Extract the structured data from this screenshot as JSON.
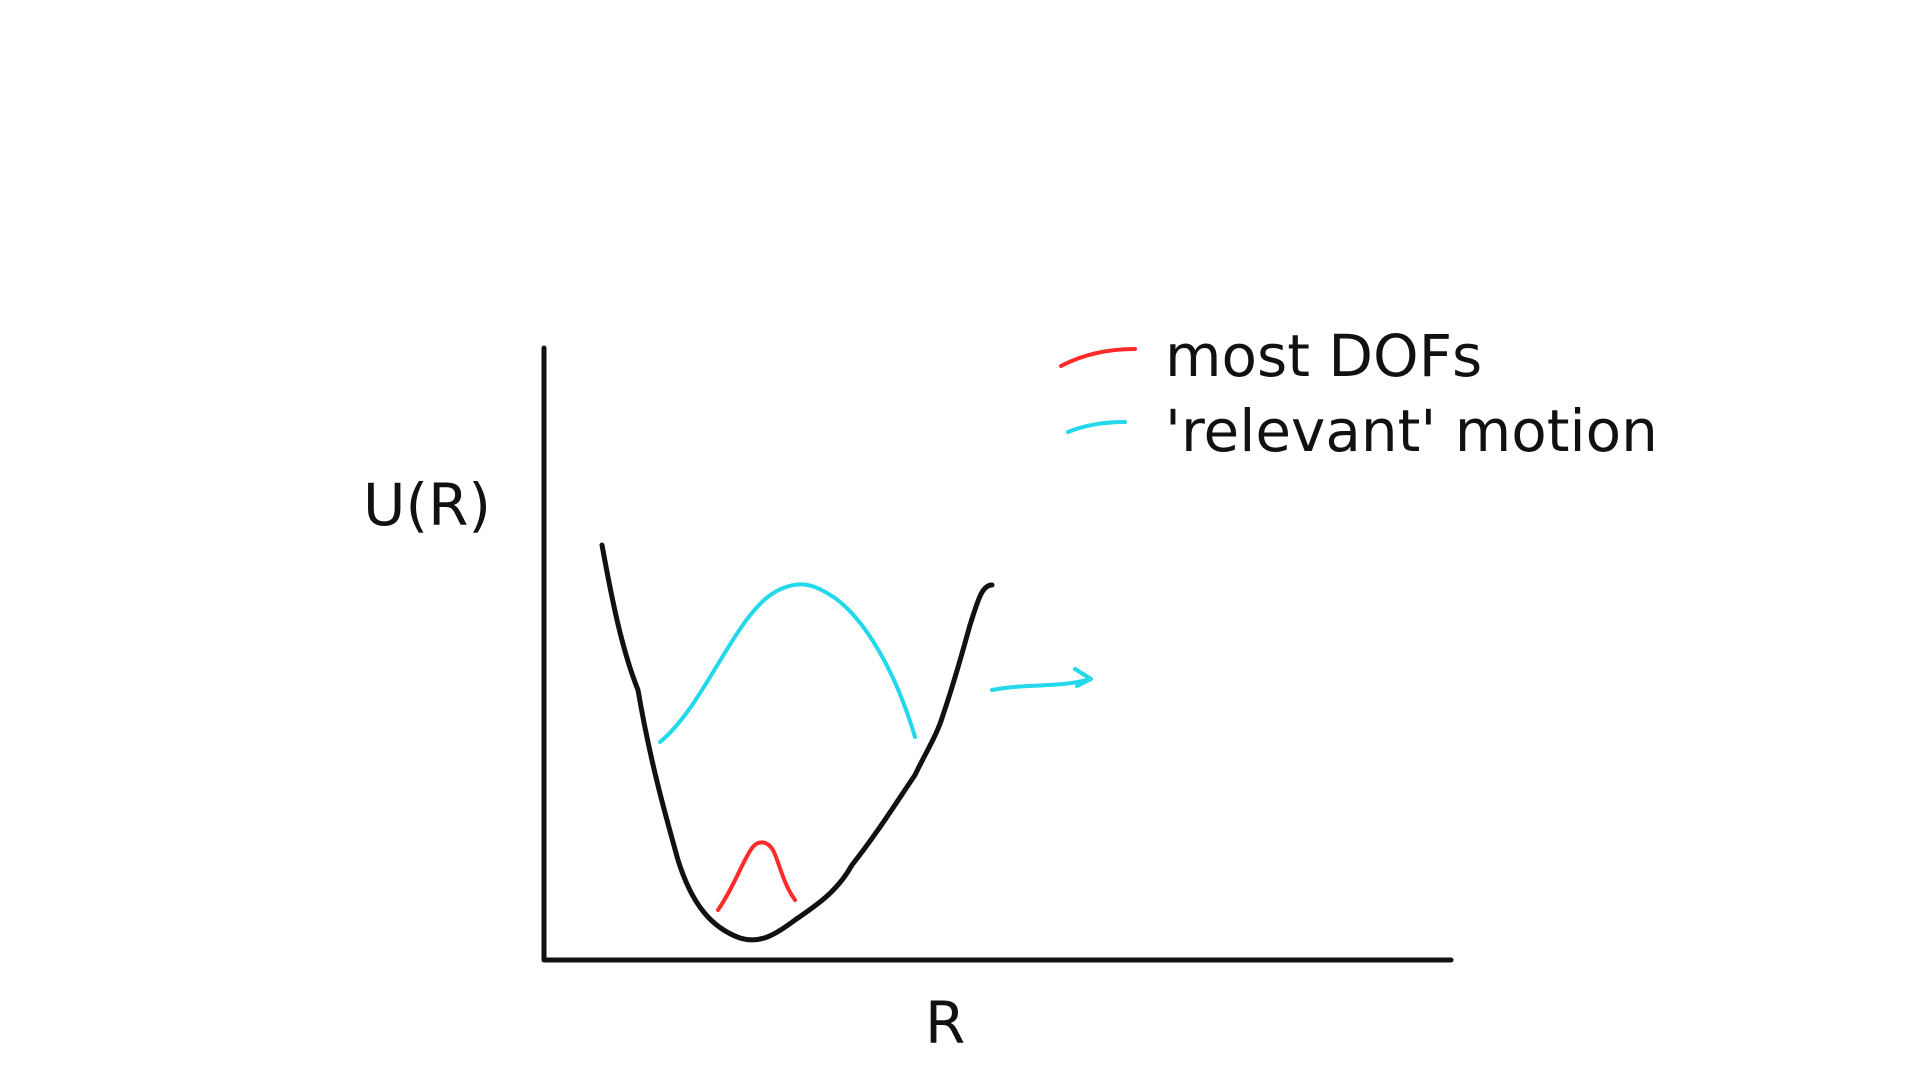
{
  "axes": {
    "y_label": "U(R)",
    "x_label": "R"
  },
  "legend": {
    "items": [
      {
        "label": "most DOFs",
        "color": "#ff2a2a"
      },
      {
        "label": "'relevant' motion",
        "color": "#22d8ea"
      }
    ]
  },
  "colors": {
    "axis": "#111111",
    "potential_curve": "#111111",
    "red_curve": "#ff2a2a",
    "cyan_curve": "#22d8ea"
  }
}
